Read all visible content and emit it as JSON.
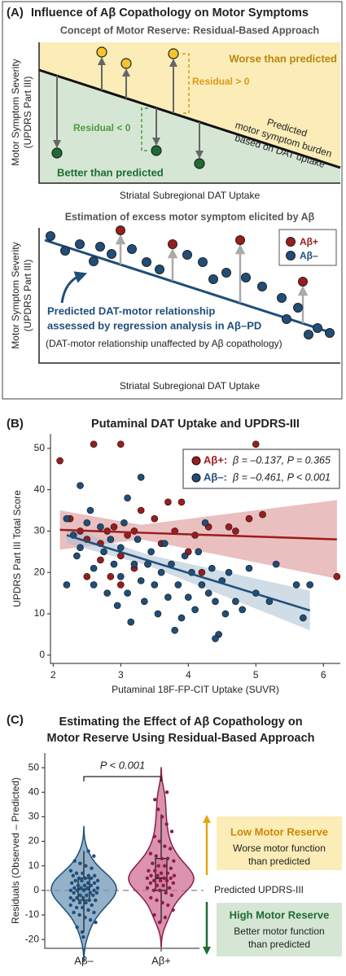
{
  "concept": {
    "label": "(A)",
    "title": "Influence of Aβ Copathology on Motor Symptoms",
    "top": {
      "subtitle": "Concept of Motor Reserve: Residual-Based Approach",
      "worse": "Worse than predicted",
      "residual_pos": "Residual > 0",
      "residual_neg": "Residual < 0",
      "better": "Better than predicted",
      "line_label": [
        "Predicted",
        "motor symptom burden",
        "based on DAT uptake"
      ],
      "xlabel": "Striatal Subregional DAT Uptake",
      "ylabel": [
        "Motor Symptom Severity",
        "(UPDRS Part III)"
      ]
    },
    "bottom": {
      "subtitle": "Estimation of excess motor symptom elicited by Aβ",
      "legend": [
        "Aβ+",
        "Aβ–"
      ],
      "annotation": [
        "Predicted DAT-motor relationship",
        "assessed by regression analysis in Aβ–PD"
      ],
      "note": "(DAT-motor relationship unaffected by Aβ copathology)",
      "xlabel": "Striatal Subregional DAT Uptake",
      "ylabel": [
        "Motor Symptom Severity",
        "(UPDRS Part III)"
      ]
    }
  },
  "chart_data": [
    {
      "type": "scatter",
      "label": "(B)",
      "title": "Putaminal DAT Uptake and UPDRS-III",
      "xlabel": "Putaminal 18F-FP-CIT Uptake (SUVR)",
      "ylabel": "UPDRS Part III Total Score",
      "xlim": [
        1.96,
        6.25
      ],
      "xticks": [
        2,
        3,
        4,
        5,
        6
      ],
      "ylim": [
        -2,
        53.5
      ],
      "yticks": [
        0,
        10,
        20,
        30,
        40,
        50
      ],
      "series": [
        {
          "name": "Aβ+:",
          "annotation": "β = –0.137, P = 0.365",
          "color": "#9b1c1c",
          "band_color": "#d98a8a",
          "x": [
            2.1,
            2.25,
            2.6,
            3.0,
            2.4,
            2.5,
            2.7,
            2.8,
            2.9,
            3.1,
            3.2,
            3.3,
            3.5,
            3.7,
            3.9,
            4.1,
            4.3,
            4.6,
            5.0,
            5.1,
            4.9,
            3.0,
            3.2,
            3.4,
            3.6,
            2.7,
            2.5,
            3.0,
            4.0,
            4.2,
            6.2,
            3.8,
            2.85,
            4.7
          ],
          "values": [
            47,
            33,
            51,
            51,
            30,
            28,
            27,
            30,
            31,
            29,
            30,
            35,
            33,
            37,
            37,
            29,
            31,
            31,
            51,
            34,
            33,
            24,
            21,
            22,
            27,
            23,
            19,
            17,
            25,
            20,
            19,
            30,
            19,
            30
          ],
          "fit": {
            "x": [
              2.1,
              3.3,
              6.2
            ],
            "values": [
              30.3,
              29.6,
              28
            ],
            "lower": [
              25.5,
              28,
              18.5
            ],
            "upper": [
              35,
              31.5,
              37.5
            ]
          }
        },
        {
          "name": "Aβ–:",
          "annotation": "β = –0.461, P < 0.001",
          "color": "#1f4e79",
          "band_color": "#a9bfd2",
          "x": [
            2.2,
            2.2,
            2.3,
            2.35,
            2.4,
            2.5,
            2.6,
            2.6,
            2.7,
            2.75,
            2.8,
            2.85,
            2.9,
            2.95,
            3.0,
            3.0,
            3.05,
            3.1,
            3.15,
            3.2,
            3.25,
            3.3,
            3.35,
            3.4,
            3.45,
            3.5,
            3.55,
            3.6,
            3.65,
            3.7,
            3.75,
            3.8,
            3.85,
            3.9,
            3.95,
            4.0,
            4.05,
            4.1,
            4.15,
            4.2,
            4.25,
            4.3,
            4.35,
            4.4,
            4.45,
            4.5,
            4.55,
            4.6,
            4.7,
            4.8,
            5.0,
            5.2,
            5.3,
            5.6,
            5.7,
            4.4,
            3.1,
            2.4,
            3.3,
            5.8,
            4.9,
            2.55
          ],
          "values": [
            17,
            33,
            29,
            24,
            26,
            32,
            21,
            17,
            31,
            25,
            15,
            28,
            22,
            12,
            26,
            19,
            32,
            15,
            8,
            22,
            28,
            18,
            13,
            22,
            25,
            17,
            10,
            20,
            27,
            14,
            22,
            6,
            17,
            9,
            24,
            14,
            20,
            11,
            25,
            17,
            32,
            15,
            21,
            13,
            5,
            18,
            10,
            20,
            13,
            11,
            15,
            13,
            22,
            17,
            9,
            4,
            38,
            41,
            43,
            17,
            21,
            35
          ],
          "fit": {
            "x": [
              2.2,
              3.4,
              5.8
            ],
            "values": [
              29,
              22.9,
              10.8
            ],
            "lower": [
              27,
              21.7,
              6
            ],
            "upper": [
              31,
              24.3,
              15.6
            ]
          }
        }
      ]
    },
    {
      "type": "violin",
      "label": "(C)",
      "title": [
        "Estimating the Effect of Aβ Copathology on",
        "Motor Reserve Using Residual-Based Approach"
      ],
      "ylabel": "Residuals (Observed – Predicted)",
      "ylim": [
        -23.6,
        56
      ],
      "yticks": [
        -20,
        -10,
        0,
        10,
        20,
        30,
        40,
        50
      ],
      "hline": 0,
      "comparison": "P < 0.001",
      "hline_label": "Predicted UPDRS-III",
      "low": {
        "title": "Low Motor Reserve",
        "text": [
          "Worse motor function",
          "than predicted"
        ]
      },
      "high": {
        "title": "High Motor Reserve",
        "text": [
          "Better motor function",
          "than predicted"
        ]
      },
      "categories": [
        "Aβ–",
        "Aβ+"
      ],
      "series": [
        {
          "fill": "#6f97b6",
          "color": "#1f4e79",
          "values": [
            -17,
            -15,
            -13,
            -12,
            -11,
            -10,
            -9,
            -9,
            -8,
            -7,
            -7,
            -6,
            -6,
            -5,
            -5,
            -4,
            -4,
            -4,
            -3,
            -3,
            -3,
            -2,
            -2,
            -2,
            -1,
            -1,
            -1,
            0,
            0,
            0,
            0,
            1,
            1,
            1,
            1,
            2,
            2,
            2,
            3,
            3,
            3,
            4,
            4,
            4,
            5,
            5,
            5,
            6,
            6,
            6,
            7,
            7,
            8,
            9,
            10,
            11,
            12,
            14,
            16,
            -19
          ],
          "box": {
            "whisker_low": -17,
            "q1": -4,
            "median": 0.5,
            "q3": 5,
            "whisker_high": 16
          }
        },
        {
          "fill": "#cf6f93",
          "color": "#8c1d4a",
          "values": [
            -13,
            -10,
            -8,
            -6,
            -5,
            -4,
            -3,
            -2,
            -1,
            0,
            0,
            1,
            1,
            2,
            2,
            3,
            3,
            4,
            4,
            4,
            5,
            5,
            5,
            6,
            6,
            6,
            7,
            7,
            8,
            8,
            9,
            10,
            10,
            11,
            12,
            13,
            13,
            14,
            15,
            17,
            18,
            20,
            22,
            24,
            27,
            30,
            33,
            37,
            40,
            -11
          ],
          "box": {
            "whisker_low": -13,
            "q1": 0,
            "median": 5,
            "q3": 13,
            "whisker_high": 31
          }
        }
      ]
    }
  ]
}
